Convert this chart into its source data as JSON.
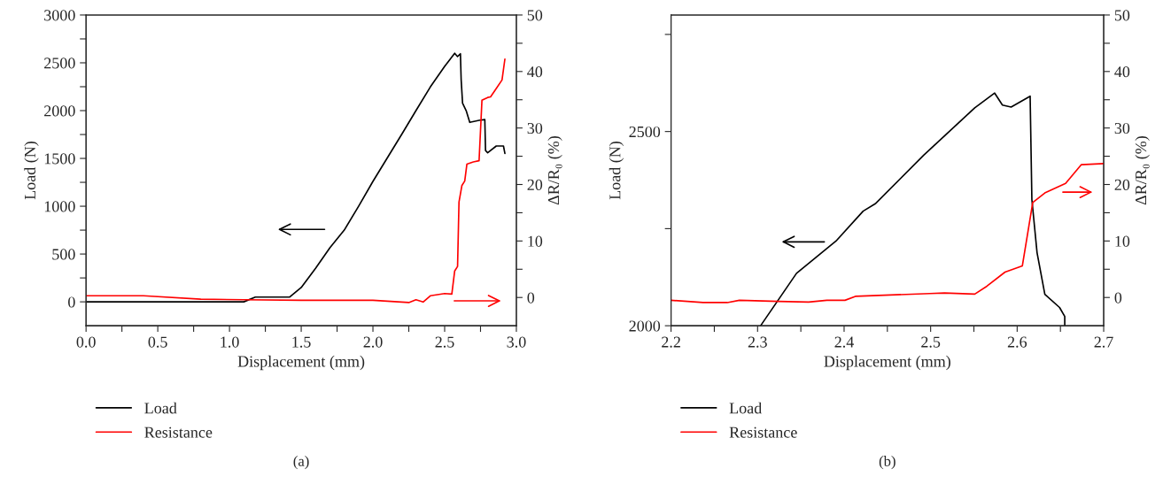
{
  "chart_data": [
    {
      "type": "line",
      "xlabel": "Displacement (mm)",
      "ylabel": "Load (N)",
      "y2label": "ΔR/R₀ (%)",
      "legend": "bottom",
      "annotations": [
        "(a)"
      ],
      "xlim": [
        0,
        3
      ],
      "xticks": [
        {
          "value": 0,
          "label": "0.0"
        },
        {
          "value": 0.25,
          "label": null
        },
        {
          "value": 0.5,
          "label": "0.5"
        },
        {
          "value": 0.75,
          "label": null
        },
        {
          "value": 1,
          "label": "1.0"
        },
        {
          "value": 1.25,
          "label": null
        },
        {
          "value": 1.5,
          "label": "1.5"
        },
        {
          "value": 1.75,
          "label": null
        },
        {
          "value": 2,
          "label": "2.0"
        },
        {
          "value": 2.25,
          "label": null
        },
        {
          "value": 2.5,
          "label": "2.5"
        },
        {
          "value": 2.75,
          "label": null
        },
        {
          "value": 3,
          "label": "3.0"
        }
      ],
      "ylim": [
        -250,
        3000
      ],
      "yticks": [
        0,
        {
          "value": 250,
          "label": null
        },
        500,
        {
          "value": 750,
          "label": null
        },
        1000,
        {
          "value": 1250,
          "label": null
        },
        1500,
        {
          "value": 1750,
          "label": null
        },
        2000,
        {
          "value": 2250,
          "label": null
        },
        2500,
        {
          "value": 2750,
          "label": null
        },
        3000
      ],
      "y2lim": [
        -5,
        50
      ],
      "y2ticks": [
        0,
        {
          "value": 5,
          "label": null
        },
        10,
        {
          "value": 15,
          "label": null
        },
        20,
        {
          "value": 25,
          "label": null
        },
        30,
        {
          "value": 35,
          "label": null
        },
        40,
        {
          "value": 45,
          "label": null
        },
        50
      ],
      "series": [
        {
          "name": "Load",
          "color": "#000000",
          "x": [
            0,
            1.1,
            1.18,
            1.42,
            1.5,
            1.6,
            1.7,
            1.8,
            1.9,
            2.0,
            2.1,
            2.2,
            2.3,
            2.4,
            2.5,
            2.57,
            2.59,
            2.61,
            2.615,
            2.625,
            2.65,
            2.675,
            2.74,
            2.78,
            2.785,
            2.8,
            2.86,
            2.91,
            2.92
          ],
          "values": [
            0,
            0,
            50,
            50,
            150,
            350,
            565,
            750,
            1000,
            1260,
            1505,
            1750,
            2000,
            2247,
            2463,
            2600,
            2565,
            2595,
            2325,
            2077,
            2000,
            1877,
            1898,
            1907,
            1583,
            1559,
            1630,
            1630,
            1552
          ]
        },
        {
          "name": "Resistance",
          "color": "#ff0000",
          "axis": "y2",
          "x": [
            0,
            0.4,
            0.8,
            1.1,
            1.5,
            2.0,
            2.25,
            2.3,
            2.35,
            2.4,
            2.5,
            2.55,
            2.57,
            2.59,
            2.6,
            2.62,
            2.64,
            2.655,
            2.7,
            2.74,
            2.76,
            2.8,
            2.82,
            2.86,
            2.9,
            2.92
          ],
          "values": [
            0.3,
            0.3,
            -0.3,
            -0.4,
            -0.5,
            -0.5,
            -0.9,
            -0.4,
            -0.8,
            0.3,
            0.7,
            0.6,
            4.7,
            5.5,
            16.9,
            19.8,
            20.6,
            23.6,
            24,
            24.2,
            34.9,
            35.4,
            35.5,
            37,
            38.5,
            42.2
          ]
        }
      ]
    },
    {
      "type": "line",
      "xlabel": "Displacement (mm)",
      "ylabel": "Load (N)",
      "y2label": "ΔR/R₀ (%)",
      "legend": "bottom",
      "annotations": [
        "(b)"
      ],
      "xlim": [
        2.2,
        2.7
      ],
      "xticks": [
        2.2,
        {
          "value": 2.25,
          "label": null
        },
        2.3,
        {
          "value": 2.35,
          "label": null
        },
        2.4,
        {
          "value": 2.45,
          "label": null
        },
        2.5,
        {
          "value": 2.55,
          "label": null
        },
        2.6,
        {
          "value": 2.65,
          "label": null
        },
        2.7
      ],
      "ylim": [
        2000,
        2800
      ],
      "yticks": [
        2000,
        {
          "value": 2250,
          "label": null
        },
        2500,
        {
          "value": 2750,
          "label": null
        }
      ],
      "y2lim": [
        -5,
        50
      ],
      "y2ticks": [
        0,
        {
          "value": 5,
          "label": null
        },
        10,
        {
          "value": 15,
          "label": null
        },
        20,
        {
          "value": 25,
          "label": null
        },
        30,
        {
          "value": 35,
          "label": null
        },
        40,
        {
          "value": 45,
          "label": null
        },
        50
      ],
      "series": [
        {
          "name": "Load",
          "color": "#000000",
          "x": [
            2.3035,
            2.345,
            2.3906,
            2.422,
            2.436,
            2.492,
            2.551,
            2.574,
            2.583,
            2.593,
            2.615,
            2.617,
            2.623,
            2.632,
            2.649,
            2.655,
            2.655
          ],
          "values": [
            2000,
            2135,
            2218,
            2295,
            2314,
            2439,
            2561,
            2599,
            2568,
            2563,
            2591,
            2325,
            2188,
            2081,
            2047,
            2024,
            2000
          ]
        },
        {
          "name": "Resistance",
          "color": "#ff0000",
          "axis": "y2",
          "x": [
            2.2,
            2.237,
            2.265,
            2.279,
            2.324,
            2.359,
            2.38,
            2.401,
            2.413,
            2.499,
            2.516,
            2.551,
            2.565,
            2.586,
            2.606,
            2.618,
            2.632,
            2.656,
            2.674,
            2.7
          ],
          "values": [
            -0.5,
            -0.9,
            -0.9,
            -0.5,
            -0.7,
            -0.8,
            -0.5,
            -0.5,
            0.2,
            0.7,
            0.8,
            0.6,
            2.0,
            4.5,
            5.6,
            16.8,
            18.5,
            20.2,
            23.5,
            23.7
          ]
        }
      ]
    }
  ]
}
